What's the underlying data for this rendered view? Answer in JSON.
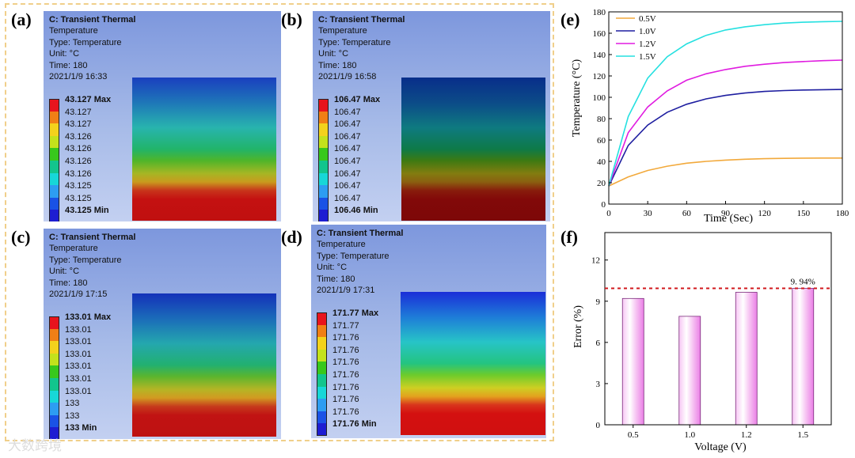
{
  "labels": {
    "a": "(a)",
    "b": "(b)",
    "c": "(c)",
    "d": "(d)",
    "e": "(e)",
    "f": "(f)"
  },
  "panels": {
    "a": {
      "title": "C: Transient Thermal",
      "l2": "Temperature",
      "l3": "Type: Temperature",
      "l4": "Unit: °C",
      "l5": "Time: 180",
      "l6": "2021/1/9 16:33",
      "legend": [
        "43.127 Max",
        "43.127",
        "43.127",
        "43.126",
        "43.126",
        "43.126",
        "43.126",
        "43.125",
        "43.125",
        "43.125 Min"
      ]
    },
    "b": {
      "title": "C: Transient Thermal",
      "l2": "Temperature",
      "l3": "Type: Temperature",
      "l4": "Unit: °C",
      "l5": "Time: 180",
      "l6": "2021/1/9 16:58",
      "legend": [
        "106.47 Max",
        "106.47",
        "106.47",
        "106.47",
        "106.47",
        "106.47",
        "106.47",
        "106.47",
        "106.47",
        "106.46 Min"
      ]
    },
    "c": {
      "title": "C: Transient Thermal",
      "l2": "Temperature",
      "l3": "Type: Temperature",
      "l4": "Unit: °C",
      "l5": "Time: 180",
      "l6": "2021/1/9 17:15",
      "legend": [
        "133.01 Max",
        "133.01",
        "133.01",
        "133.01",
        "133.01",
        "133.01",
        "133.01",
        "133",
        "133",
        "133 Min"
      ]
    },
    "d": {
      "title": "C: Transient Thermal",
      "l2": "Temperature",
      "l3": "Type: Temperature",
      "l4": "Unit: °C",
      "l5": "Time: 180",
      "l6": "2021/1/9 17:31",
      "legend": [
        "171.77 Max",
        "171.77",
        "171.76",
        "171.76",
        "171.76",
        "171.76",
        "171.76",
        "171.76",
        "171.76",
        "171.76 Min"
      ]
    }
  },
  "legend_colors": [
    "#e8141d",
    "#f07f16",
    "#f3d21c",
    "#c3e21c",
    "#38c81c",
    "#12c58d",
    "#17d7d8",
    "#2d9df2",
    "#1a52e6",
    "#1d1dd2"
  ],
  "watermark": "大数跨境",
  "chart_data": [
    {
      "type": "line",
      "title": "",
      "xlabel": "Time (Sec)",
      "ylabel": "Temperature (°C)",
      "xlim": [
        0,
        180
      ],
      "ylim": [
        0,
        180
      ],
      "xticks": [
        0,
        30,
        60,
        90,
        120,
        150,
        180
      ],
      "yticks": [
        0,
        20,
        40,
        60,
        80,
        100,
        120,
        140,
        160,
        180
      ],
      "x": [
        0,
        15,
        30,
        45,
        60,
        75,
        90,
        105,
        120,
        135,
        150,
        165,
        180
      ],
      "series": [
        {
          "name": "0.5V",
          "color": "#f2a93b",
          "values": [
            17,
            25.5,
            31.5,
            35.5,
            38.3,
            40,
            41.2,
            42,
            42.5,
            42.8,
            43,
            43.1,
            43.1
          ]
        },
        {
          "name": "1.0V",
          "color": "#1e1ea0",
          "values": [
            17,
            55,
            74,
            86,
            93.5,
            98.5,
            101.8,
            104,
            105.5,
            106.3,
            106.8,
            107.1,
            107.3
          ]
        },
        {
          "name": "1.2V",
          "color": "#e01ce0",
          "values": [
            17,
            67,
            91,
            106,
            116,
            122,
            126,
            129,
            131,
            132.5,
            133.5,
            134.3,
            134.8
          ]
        },
        {
          "name": "1.5V",
          "color": "#25e0e0",
          "values": [
            17,
            82,
            118,
            138,
            150,
            158,
            163,
            166,
            168,
            169.5,
            170.3,
            170.8,
            171.1
          ]
        }
      ]
    },
    {
      "type": "bar",
      "title": "",
      "xlabel": "Voltage (V)",
      "ylabel": "Error (%)",
      "categories": [
        "0.5",
        "1.0",
        "1.2",
        "1.5"
      ],
      "values": [
        9.2,
        7.9,
        9.65,
        9.94
      ],
      "ylim": [
        0,
        14
      ],
      "yticks": [
        0,
        3,
        6,
        9,
        12
      ],
      "reference_line": 9.94,
      "annotation": "9. 94%"
    }
  ]
}
